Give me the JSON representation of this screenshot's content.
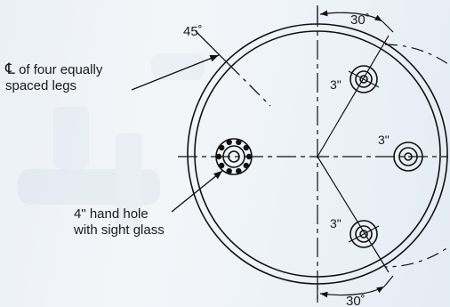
{
  "diagram": {
    "angle_label": "45˚",
    "leg_centerline_symbol": "℄",
    "leg_centerline_line1": " of four equally",
    "leg_centerline_line2": "spaced legs",
    "hand_hole_line1": "4\" hand hole",
    "hand_hole_line2": "with sight glass",
    "top_angle_label": "30˚",
    "bottom_angle_label": "30˚",
    "nozzle_top_label": "3\"",
    "nozzle_right_label": "3\"",
    "nozzle_bottom_label": "3\""
  },
  "colors": {
    "line": "#111111",
    "background": "#eef3f8"
  }
}
